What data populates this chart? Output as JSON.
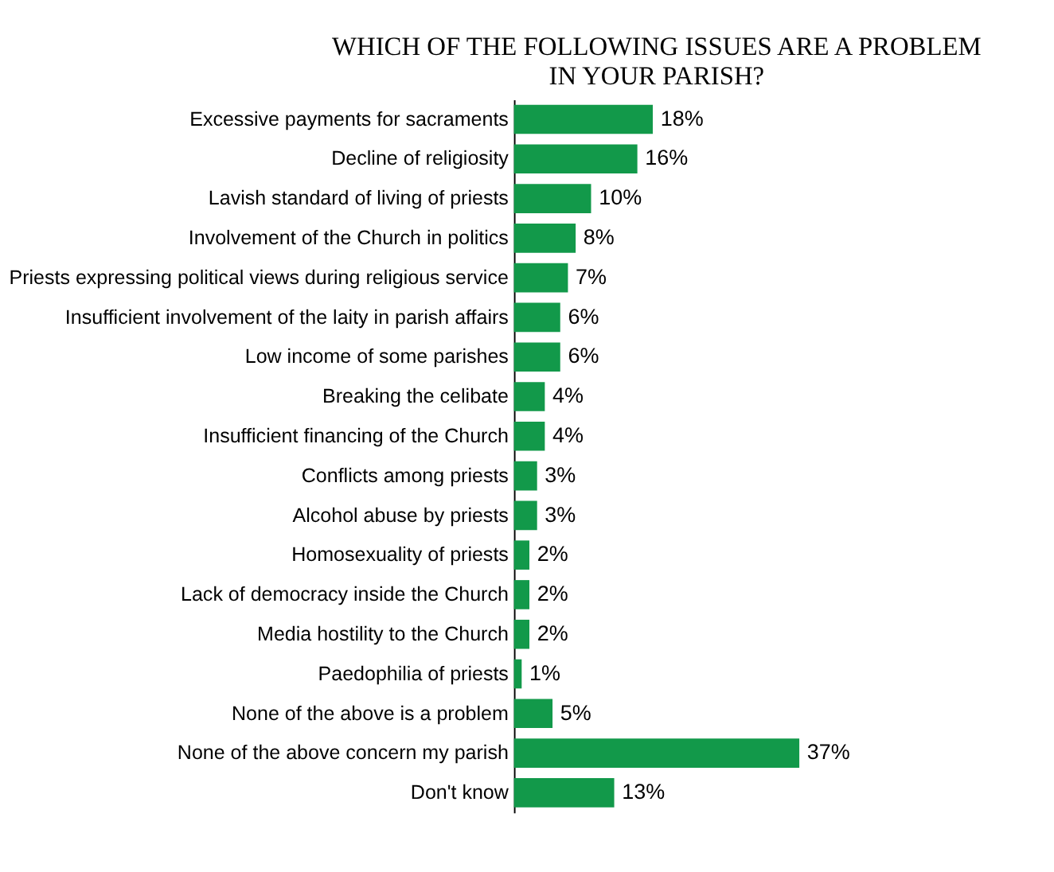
{
  "chart_data": {
    "type": "bar",
    "orientation": "horizontal",
    "title": "WHICH OF THE FOLLOWING ISSUES ARE A PROBLEM\nIN YOUR PARISH?",
    "categories": [
      "Excessive payments for sacraments",
      "Decline of religiosity",
      "Lavish standard of living of priests",
      "Involvement of the Church in politics",
      "Priests expressing political views during religious service",
      "Insufficient involvement of the laity in parish affairs",
      "Low income of some parishes",
      "Breaking the celibate",
      "Insufficient financing of the Church",
      "Conflicts among priests",
      "Alcohol abuse by priests",
      "Homosexuality of priests",
      "Lack of democracy inside the Church",
      "Media hostility to the Church",
      "Paedophilia of priests",
      "None of the above is a problem",
      "None of the above concern my parish",
      "Don't know"
    ],
    "values": [
      18,
      16,
      10,
      8,
      7,
      6,
      6,
      4,
      4,
      3,
      3,
      2,
      2,
      2,
      1,
      5,
      37,
      13
    ],
    "value_labels": [
      "18%",
      "16%",
      "10%",
      "8%",
      "7%",
      "6%",
      "6%",
      "4%",
      "4%",
      "3%",
      "3%",
      "2%",
      "2%",
      "2%",
      "1%",
      "5%",
      "37%",
      "13%"
    ],
    "color": "#12994a",
    "grid": false
  }
}
